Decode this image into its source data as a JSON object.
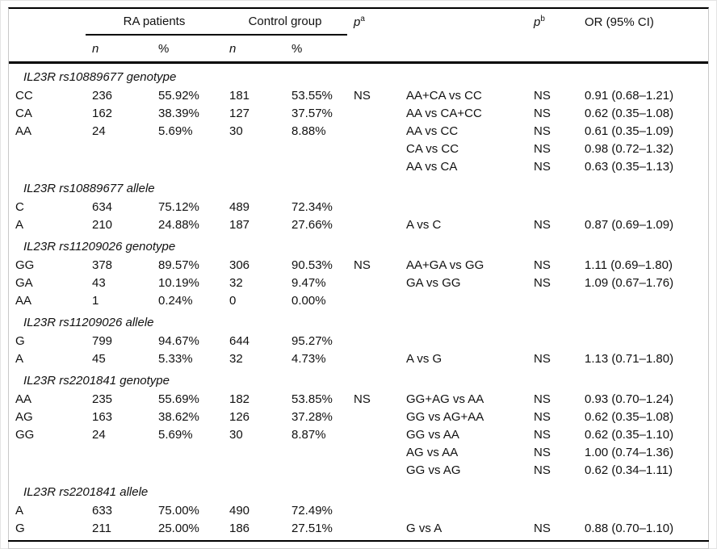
{
  "header": {
    "group_ra": "RA patients",
    "group_control": "Control group",
    "col_n": "n",
    "col_pct": "%",
    "p_label": "p",
    "p_sup_a": "a",
    "p_sup_b": "b",
    "or_label": "OR (95% CI)"
  },
  "columns_order": [
    "label",
    "ra_n",
    "ra_pct",
    "ctrl_n",
    "ctrl_pct",
    "pa",
    "comparison",
    "pb",
    "or"
  ],
  "rules_color": "#000000",
  "frame_color": "#c9c9c9",
  "sections": [
    {
      "title": "IL23R rs10889677 genotype",
      "rows": [
        {
          "label": "CC",
          "ra_n": "236",
          "ra_pct": "55.92%",
          "ctrl_n": "181",
          "ctrl_pct": "53.55%",
          "pa": "NS",
          "comparison": "AA+CA vs CC",
          "pb": "NS",
          "or": "0.91 (0.68–1.21)"
        },
        {
          "label": "CA",
          "ra_n": "162",
          "ra_pct": "38.39%",
          "ctrl_n": "127",
          "ctrl_pct": "37.57%",
          "pa": "",
          "comparison": "AA vs CA+CC",
          "pb": "NS",
          "or": "0.62 (0.35–1.08)"
        },
        {
          "label": "AA",
          "ra_n": "24",
          "ra_pct": "5.69%",
          "ctrl_n": "30",
          "ctrl_pct": "8.88%",
          "pa": "",
          "comparison": "AA vs CC",
          "pb": "NS",
          "or": "0.61 (0.35–1.09)"
        },
        {
          "label": "",
          "ra_n": "",
          "ra_pct": "",
          "ctrl_n": "",
          "ctrl_pct": "",
          "pa": "",
          "comparison": "CA vs CC",
          "pb": "NS",
          "or": "0.98 (0.72–1.32)"
        },
        {
          "label": "",
          "ra_n": "",
          "ra_pct": "",
          "ctrl_n": "",
          "ctrl_pct": "",
          "pa": "",
          "comparison": "AA vs CA",
          "pb": "NS",
          "or": "0.63 (0.35–1.13)"
        }
      ]
    },
    {
      "title": "IL23R rs10889677 allele",
      "rows": [
        {
          "label": "C",
          "ra_n": "634",
          "ra_pct": "75.12%",
          "ctrl_n": "489",
          "ctrl_pct": "72.34%",
          "pa": "",
          "comparison": "",
          "pb": "",
          "or": ""
        },
        {
          "label": "A",
          "ra_n": "210",
          "ra_pct": "24.88%",
          "ctrl_n": "187",
          "ctrl_pct": "27.66%",
          "pa": "",
          "comparison": "A vs C",
          "pb": "NS",
          "or": "0.87 (0.69–1.09)"
        }
      ]
    },
    {
      "title": "IL23R rs11209026 genotype",
      "rows": [
        {
          "label": "GG",
          "ra_n": "378",
          "ra_pct": "89.57%",
          "ctrl_n": "306",
          "ctrl_pct": "90.53%",
          "pa": "NS",
          "comparison": "AA+GA vs GG",
          "pb": "NS",
          "or": "1.11 (0.69–1.80)"
        },
        {
          "label": "GA",
          "ra_n": "43",
          "ra_pct": "10.19%",
          "ctrl_n": "32",
          "ctrl_pct": "9.47%",
          "pa": "",
          "comparison": "GA vs GG",
          "pb": "NS",
          "or": "1.09 (0.67–1.76)"
        },
        {
          "label": "AA",
          "ra_n": "1",
          "ra_pct": "0.24%",
          "ctrl_n": "0",
          "ctrl_pct": "0.00%",
          "pa": "",
          "comparison": "",
          "pb": "",
          "or": ""
        }
      ]
    },
    {
      "title": "IL23R rs11209026 allele",
      "rows": [
        {
          "label": "G",
          "ra_n": "799",
          "ra_pct": "94.67%",
          "ctrl_n": "644",
          "ctrl_pct": "95.27%",
          "pa": "",
          "comparison": "",
          "pb": "",
          "or": ""
        },
        {
          "label": "A",
          "ra_n": "45",
          "ra_pct": "5.33%",
          "ctrl_n": "32",
          "ctrl_pct": "4.73%",
          "pa": "",
          "comparison": "A vs G",
          "pb": "NS",
          "or": "1.13 (0.71–1.80)"
        }
      ]
    },
    {
      "title": "IL23R rs2201841 genotype",
      "rows": [
        {
          "label": "AA",
          "ra_n": "235",
          "ra_pct": "55.69%",
          "ctrl_n": "182",
          "ctrl_pct": "53.85%",
          "pa": "NS",
          "comparison": "GG+AG vs AA",
          "pb": "NS",
          "or": "0.93 (0.70–1.24)"
        },
        {
          "label": "AG",
          "ra_n": "163",
          "ra_pct": "38.62%",
          "ctrl_n": "126",
          "ctrl_pct": "37.28%",
          "pa": "",
          "comparison": "GG vs AG+AA",
          "pb": "NS",
          "or": "0.62 (0.35–1.08)"
        },
        {
          "label": "GG",
          "ra_n": "24",
          "ra_pct": "5.69%",
          "ctrl_n": "30",
          "ctrl_pct": "8.87%",
          "pa": "",
          "comparison": "GG vs AA",
          "pb": "NS",
          "or": "0.62 (0.35–1.10)"
        },
        {
          "label": "",
          "ra_n": "",
          "ra_pct": "",
          "ctrl_n": "",
          "ctrl_pct": "",
          "pa": "",
          "comparison": "AG vs AA",
          "pb": "NS",
          "or": "1.00 (0.74–1.36)"
        },
        {
          "label": "",
          "ra_n": "",
          "ra_pct": "",
          "ctrl_n": "",
          "ctrl_pct": "",
          "pa": "",
          "comparison": "GG vs AG",
          "pb": "NS",
          "or": "0.62 (0.34–1.11)"
        }
      ]
    },
    {
      "title": "IL23R rs2201841 allele",
      "rows": [
        {
          "label": "A",
          "ra_n": "633",
          "ra_pct": "75.00%",
          "ctrl_n": "490",
          "ctrl_pct": "72.49%",
          "pa": "",
          "comparison": "",
          "pb": "",
          "or": ""
        },
        {
          "label": "G",
          "ra_n": "211",
          "ra_pct": "25.00%",
          "ctrl_n": "186",
          "ctrl_pct": "27.51%",
          "pa": "",
          "comparison": "G vs A",
          "pb": "NS",
          "or": "0.88 (0.70–1.10)"
        }
      ]
    }
  ]
}
